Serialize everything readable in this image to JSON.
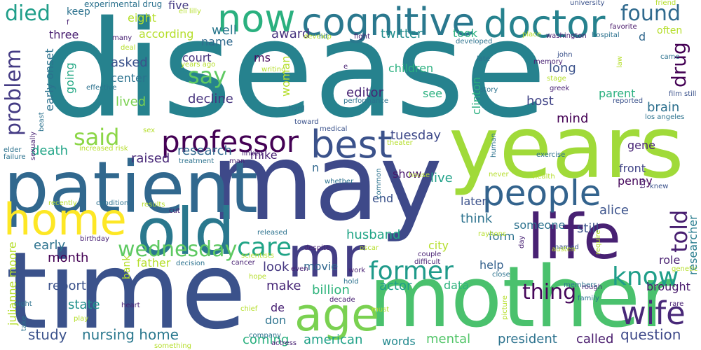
{
  "words": [
    {
      "text": "disease",
      "color": "#26828e"
    },
    {
      "text": "may",
      "color": "#3e4989"
    },
    {
      "text": "time",
      "color": "#3b528b"
    },
    {
      "text": "years",
      "color": "#a0da39"
    },
    {
      "text": "mother",
      "color": "#4ac16d"
    },
    {
      "text": "patient",
      "color": "#31688e"
    },
    {
      "text": "life",
      "color": "#482173"
    },
    {
      "text": "old",
      "color": "#2a788e"
    },
    {
      "text": "home",
      "color": "#fde725"
    },
    {
      "text": "mr",
      "color": "#433e85"
    },
    {
      "text": "age",
      "color": "#7ad151"
    },
    {
      "text": "now",
      "color": "#2ab07f"
    },
    {
      "text": "cognitive",
      "color": "#2a788e"
    },
    {
      "text": "doctor",
      "color": "#26828e"
    },
    {
      "text": "people",
      "color": "#33638d"
    },
    {
      "text": "best",
      "color": "#3b528b"
    },
    {
      "text": "professor",
      "color": "#440154"
    },
    {
      "text": "wife",
      "color": "#482878"
    },
    {
      "text": "know",
      "color": "#1f9e89"
    },
    {
      "text": "told",
      "color": "#481f70"
    },
    {
      "text": "former",
      "color": "#1f9a8a"
    },
    {
      "text": "care",
      "color": "#20a486"
    },
    {
      "text": "wednesday",
      "color": "#5ec962"
    },
    {
      "text": "thing",
      "color": "#46075a"
    },
    {
      "text": "found",
      "color": "#306a8e"
    },
    {
      "text": "said",
      "color": "#8bd646"
    },
    {
      "text": "say",
      "color": "#5ec962"
    },
    {
      "text": "died",
      "color": "#1f9e89"
    },
    {
      "text": "problem",
      "color": "#443b84"
    },
    {
      "text": "drug",
      "color": "#440154"
    },
    {
      "text": "brain",
      "color": "#2d708e"
    },
    {
      "text": "nursing home",
      "color": "#2a788e"
    },
    {
      "text": "study",
      "color": "#3b528b"
    },
    {
      "text": "question",
      "color": "#3e4989"
    },
    {
      "text": "called",
      "color": "#481a6c"
    },
    {
      "text": "president",
      "color": "#2c728e"
    },
    {
      "text": "mental",
      "color": "#52c569"
    },
    {
      "text": "american",
      "color": "#1fa188"
    },
    {
      "text": "words",
      "color": "#23898e"
    },
    {
      "text": "coming",
      "color": "#2ab07f"
    },
    {
      "text": "report",
      "color": "#3b528b"
    },
    {
      "text": "state",
      "color": "#21918c"
    },
    {
      "text": "billion",
      "color": "#2eb37c"
    },
    {
      "text": "make",
      "color": "#482878"
    },
    {
      "text": "look",
      "color": "#453781"
    },
    {
      "text": "actor",
      "color": "#1f9e89"
    },
    {
      "text": "data",
      "color": "#2db27d"
    },
    {
      "text": "help",
      "color": "#34618d"
    },
    {
      "text": "month",
      "color": "#440154"
    },
    {
      "text": "father",
      "color": "#b5de2b"
    },
    {
      "text": "early",
      "color": "#2c728e"
    },
    {
      "text": "movie",
      "color": "#31688e"
    },
    {
      "text": "husband",
      "color": "#20a486"
    },
    {
      "text": "city",
      "color": "#b5de2b"
    },
    {
      "text": "form",
      "color": "#2c728e"
    },
    {
      "text": "think",
      "color": "#2c728e"
    },
    {
      "text": "later",
      "color": "#3b528b"
    },
    {
      "text": "end",
      "color": "#3b528b"
    },
    {
      "text": "live",
      "color": "#1fa188"
    },
    {
      "text": "show",
      "color": "#48186a"
    },
    {
      "text": "research",
      "color": "#31688e"
    },
    {
      "text": "raised",
      "color": "#482878"
    },
    {
      "text": "death",
      "color": "#20a486"
    },
    {
      "text": "mike",
      "color": "#482173"
    },
    {
      "text": "tuesday",
      "color": "#3e4989"
    },
    {
      "text": "decline",
      "color": "#46337e"
    },
    {
      "text": "lived",
      "color": "#7ad151"
    },
    {
      "text": "editor",
      "color": "#482475"
    },
    {
      "text": "see",
      "color": "#2ab07f"
    },
    {
      "text": "host",
      "color": "#414487"
    },
    {
      "text": "parent",
      "color": "#2ab07f"
    },
    {
      "text": "mind",
      "color": "#440154"
    },
    {
      "text": "long",
      "color": "#3b528b"
    },
    {
      "text": "children",
      "color": "#2ab07f"
    },
    {
      "text": "award",
      "color": "#46337e"
    },
    {
      "text": "well",
      "color": "#2a788e"
    },
    {
      "text": "twitter",
      "color": "#228d8d"
    },
    {
      "text": "took",
      "color": "#2ab07f"
    },
    {
      "text": "three",
      "color": "#481f70"
    },
    {
      "text": "five",
      "color": "#443b84"
    },
    {
      "text": "eight",
      "color": "#b5de2b"
    },
    {
      "text": "keep",
      "color": "#2c728e"
    },
    {
      "text": "according",
      "color": "#b5de2b"
    },
    {
      "text": "asked",
      "color": "#3b528b"
    },
    {
      "text": "center",
      "color": "#2c728e"
    },
    {
      "text": "court",
      "color": "#46337e"
    },
    {
      "text": "name",
      "color": "#306a8e"
    },
    {
      "text": "ms",
      "color": "#46085c"
    },
    {
      "text": "woman",
      "color": "#b5de2b"
    },
    {
      "text": "going",
      "color": "#22a884"
    },
    {
      "text": "early onset",
      "color": "#2c728e"
    },
    {
      "text": "clinton",
      "color": "#29af7f"
    },
    {
      "text": "penny",
      "color": "#46085c"
    },
    {
      "text": "alice",
      "color": "#3b528b"
    },
    {
      "text": "still",
      "color": "#3b528b"
    },
    {
      "text": "someone",
      "color": "#2c728e"
    },
    {
      "text": "front",
      "color": "#414487"
    },
    {
      "text": "gene",
      "color": "#482475"
    },
    {
      "text": "role",
      "color": "#481f70"
    },
    {
      "text": "brought",
      "color": "#481a6c"
    },
    {
      "text": "researcher",
      "color": "#287c8e"
    },
    {
      "text": "julianne moore",
      "color": "#b5de2b"
    },
    {
      "text": "bank",
      "color": "#b5de2b"
    },
    {
      "text": "don",
      "color": "#2c728e"
    },
    {
      "text": "de",
      "color": "#482173"
    },
    {
      "text": "often",
      "color": "#b5de2b"
    },
    {
      "text": "d",
      "color": "#31688e"
    },
    {
      "text": "n",
      "color": "#31688e"
    },
    {
      "text": "experimental drug",
      "color": "#2c728e"
    },
    {
      "text": "eli lilly",
      "color": "#b5de2b"
    },
    {
      "text": "university",
      "color": "#3b528b"
    },
    {
      "text": "friend",
      "color": "#b5de2b"
    },
    {
      "text": "favorite",
      "color": "#48186a"
    },
    {
      "text": "came",
      "color": "#2c728e"
    },
    {
      "text": "john",
      "color": "#3b528b"
    },
    {
      "text": "memory",
      "color": "#482173"
    },
    {
      "text": "law",
      "color": "#b5de2b"
    },
    {
      "text": "stage",
      "color": "#b5de2b"
    },
    {
      "text": "film still",
      "color": "#3b528b"
    },
    {
      "text": "reported",
      "color": "#3b528b"
    },
    {
      "text": "washington",
      "color": "#482173"
    },
    {
      "text": "hospital",
      "color": "#2c728e"
    },
    {
      "text": "place",
      "color": "#b5de2b"
    },
    {
      "text": "developed",
      "color": "#2c728e"
    },
    {
      "text": "late",
      "color": "#2c728e"
    },
    {
      "text": "story",
      "color": "#2c728e"
    },
    {
      "text": "greek",
      "color": "#482173"
    },
    {
      "text": "los angeles",
      "color": "#2c728e"
    },
    {
      "text": "fight",
      "color": "#482173"
    },
    {
      "text": "develop",
      "color": "#b5de2b"
    },
    {
      "text": "hit",
      "color": "#2c728e"
    },
    {
      "text": "years ago",
      "color": "#b5de2b"
    },
    {
      "text": "writing",
      "color": "#b5de2b"
    },
    {
      "text": "many",
      "color": "#482173"
    },
    {
      "text": "deal",
      "color": "#b5de2b"
    },
    {
      "text": "effective",
      "color": "#2c728e"
    },
    {
      "text": "f",
      "color": "#482173"
    },
    {
      "text": "e",
      "color": "#482173"
    },
    {
      "text": "hard",
      "color": "#2c728e"
    },
    {
      "text": "performance",
      "color": "#2c728e"
    },
    {
      "text": "toward",
      "color": "#3b528b"
    },
    {
      "text": "medical",
      "color": "#3b528b"
    },
    {
      "text": "theater",
      "color": "#b5de2b"
    },
    {
      "text": "human",
      "color": "#2c728e"
    },
    {
      "text": "exercise",
      "color": "#2c728e"
    },
    {
      "text": "health",
      "color": "#b5de2b"
    },
    {
      "text": "never",
      "color": "#b5de2b"
    },
    {
      "text": "try",
      "color": "#482173"
    },
    {
      "text": "knew",
      "color": "#3b528b"
    },
    {
      "text": "sex",
      "color": "#b5de2b"
    },
    {
      "text": "beast",
      "color": "#2c728e"
    },
    {
      "text": "sexually",
      "color": "#482173"
    },
    {
      "text": "elder",
      "color": "#2c728e"
    },
    {
      "text": "failure",
      "color": "#2c728e"
    },
    {
      "text": "increased risk",
      "color": "#b5de2b"
    },
    {
      "text": "treatment",
      "color": "#2c728e"
    },
    {
      "text": "man",
      "color": "#482173"
    },
    {
      "text": "linked",
      "color": "#482173"
    },
    {
      "text": "whether",
      "color": "#2c728e"
    },
    {
      "text": "common",
      "color": "#2c728e"
    },
    {
      "text": "house",
      "color": "#b5de2b"
    },
    {
      "text": "recently",
      "color": "#b5de2b"
    },
    {
      "text": "condition",
      "color": "#2c728e"
    },
    {
      "text": "results",
      "color": "#b5de2b"
    },
    {
      "text": "cut",
      "color": "#482173"
    },
    {
      "text": "released",
      "color": "#2c728e"
    },
    {
      "text": "despite",
      "color": "#482173"
    },
    {
      "text": "oscar",
      "color": "#b5de2b"
    },
    {
      "text": "rayhons",
      "color": "#b5de2b"
    },
    {
      "text": "day",
      "color": "#482173"
    },
    {
      "text": "require",
      "color": "#b5de2b"
    },
    {
      "text": "named",
      "color": "#3b528b"
    },
    {
      "text": "austen",
      "color": "#b5de2b"
    },
    {
      "text": "couple",
      "color": "#482173"
    },
    {
      "text": "difficult",
      "color": "#482173"
    },
    {
      "text": "birthday",
      "color": "#482173"
    },
    {
      "text": "decision",
      "color": "#2c728e"
    },
    {
      "text": "cancer",
      "color": "#482173"
    },
    {
      "text": "scientists",
      "color": "#b5de2b"
    },
    {
      "text": "even",
      "color": "#482173"
    },
    {
      "text": "work",
      "color": "#482173"
    },
    {
      "text": "hold",
      "color": "#2c728e"
    },
    {
      "text": "close",
      "color": "#2c728e"
    },
    {
      "text": "members",
      "color": "#2c728e"
    },
    {
      "text": "rough",
      "color": "#482173"
    },
    {
      "text": "family",
      "color": "#2c728e"
    },
    {
      "text": "genetic",
      "color": "#b5de2b"
    },
    {
      "text": "rare",
      "color": "#482173"
    },
    {
      "text": "night",
      "color": "#2c728e"
    },
    {
      "text": "take",
      "color": "#2c728e"
    },
    {
      "text": "heart",
      "color": "#482173"
    },
    {
      "text": "play",
      "color": "#b5de2b"
    },
    {
      "text": "hope",
      "color": "#b5de2b"
    },
    {
      "text": "decade",
      "color": "#482173"
    },
    {
      "text": "chief",
      "color": "#b5de2b"
    },
    {
      "text": "must",
      "color": "#b5de2b"
    },
    {
      "text": "company",
      "color": "#2c728e"
    },
    {
      "text": "actress",
      "color": "#482173"
    },
    {
      "text": "something",
      "color": "#b5de2b"
    },
    {
      "text": "picture",
      "color": "#b5de2b"
    }
  ]
}
